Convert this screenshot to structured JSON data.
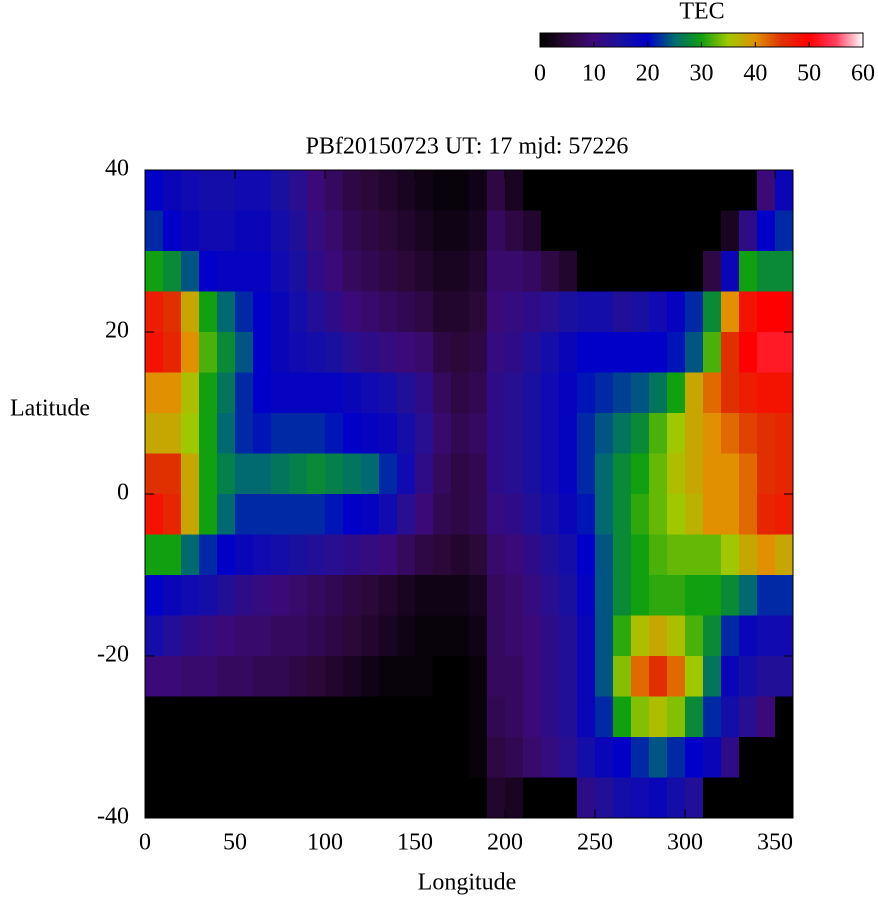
{
  "chart_data": {
    "type": "heatmap",
    "title": "PBf20150723  UT: 17  mjd: 57226",
    "xlabel": "Longitude",
    "ylabel": "Latitude",
    "colorbar_label": "TEC",
    "xlim": [
      0,
      360
    ],
    "ylim": [
      -40,
      40
    ],
    "xticks": [
      0,
      50,
      100,
      150,
      200,
      250,
      300,
      350
    ],
    "yticks": [
      -40,
      -20,
      0,
      20,
      40
    ],
    "clim": [
      0,
      60
    ],
    "cticks": [
      0,
      10,
      20,
      30,
      40,
      50,
      60
    ],
    "colormap": [
      [
        0,
        "#000000"
      ],
      [
        5,
        "#2a0838"
      ],
      [
        10,
        "#3c0a78"
      ],
      [
        15,
        "#1a10a0"
      ],
      [
        20,
        "#0000c8"
      ],
      [
        25,
        "#006a70"
      ],
      [
        30,
        "#10a010"
      ],
      [
        35,
        "#a0c800"
      ],
      [
        40,
        "#e09000"
      ],
      [
        45,
        "#e03000"
      ],
      [
        50,
        "#ff0000"
      ],
      [
        55,
        "#ff4060"
      ],
      [
        60,
        "#ffffff"
      ]
    ],
    "x": [
      5,
      15,
      25,
      35,
      45,
      55,
      65,
      75,
      85,
      95,
      105,
      115,
      125,
      135,
      145,
      155,
      165,
      175,
      185,
      195,
      205,
      215,
      225,
      235,
      245,
      255,
      265,
      275,
      285,
      295,
      305,
      315,
      325,
      335,
      345,
      355
    ],
    "y": [
      37.5,
      32.5,
      27.5,
      22.5,
      17.5,
      12.5,
      7.5,
      2.5,
      -2.5,
      -7.5,
      -12.5,
      -17.5,
      -22.5,
      -27.5,
      -32.5,
      -37.5
    ],
    "z": [
      [
        20,
        18,
        17,
        16,
        16,
        17,
        17,
        15,
        13,
        10,
        8,
        6,
        5,
        4,
        3,
        2,
        1,
        1,
        2,
        6,
        3,
        0,
        0,
        0,
        0,
        0,
        0,
        0,
        0,
        0,
        0,
        0,
        0,
        0,
        10,
        18
      ],
      [
        22,
        20,
        18,
        17,
        17,
        18,
        18,
        16,
        14,
        11,
        9,
        7,
        6,
        5,
        4,
        3,
        2,
        2,
        3,
        8,
        6,
        4,
        0,
        0,
        0,
        0,
        0,
        0,
        0,
        0,
        0,
        0,
        3,
        12,
        20,
        22
      ],
      [
        30,
        28,
        24,
        20,
        19,
        19,
        19,
        17,
        15,
        12,
        10,
        8,
        7,
        6,
        5,
        4,
        3,
        3,
        4,
        9,
        9,
        8,
        6,
        4,
        0,
        0,
        0,
        0,
        0,
        0,
        0,
        6,
        18,
        30,
        28,
        28
      ],
      [
        47,
        45,
        38,
        30,
        25,
        22,
        20,
        18,
        16,
        14,
        12,
        10,
        9,
        8,
        7,
        6,
        4,
        4,
        5,
        10,
        11,
        12,
        13,
        15,
        16,
        16,
        14,
        15,
        17,
        19,
        22,
        28,
        40,
        48,
        50,
        50
      ],
      [
        48,
        46,
        40,
        32,
        28,
        24,
        20,
        18,
        17,
        16,
        15,
        13,
        12,
        11,
        10,
        9,
        6,
        5,
        6,
        11,
        12,
        14,
        16,
        18,
        20,
        20,
        20,
        20,
        20,
        21,
        24,
        32,
        45,
        50,
        52,
        52
      ],
      [
        40,
        40,
        36,
        30,
        26,
        22,
        20,
        19,
        19,
        19,
        19,
        18,
        17,
        16,
        14,
        12,
        8,
        6,
        7,
        12,
        13,
        15,
        17,
        19,
        21,
        22,
        23,
        24,
        26,
        30,
        38,
        42,
        45,
        47,
        48,
        48
      ],
      [
        38,
        38,
        35,
        30,
        25,
        22,
        21,
        22,
        22,
        22,
        21,
        20,
        19,
        18,
        16,
        13,
        9,
        7,
        8,
        12,
        13,
        15,
        17,
        19,
        22,
        24,
        26,
        28,
        32,
        35,
        38,
        40,
        42,
        44,
        45,
        46
      ],
      [
        45,
        45,
        38,
        30,
        27,
        25,
        25,
        26,
        27,
        28,
        27,
        26,
        25,
        22,
        17,
        12,
        8,
        6,
        7,
        12,
        13,
        15,
        17,
        19,
        22,
        25,
        28,
        30,
        33,
        36,
        38,
        40,
        40,
        42,
        45,
        46
      ],
      [
        48,
        46,
        38,
        30,
        25,
        22,
        22,
        22,
        22,
        22,
        21,
        20,
        19,
        17,
        13,
        10,
        7,
        6,
        7,
        11,
        12,
        14,
        16,
        18,
        21,
        25,
        28,
        31,
        33,
        35,
        37,
        40,
        40,
        42,
        46,
        47
      ],
      [
        30,
        30,
        25,
        22,
        20,
        18,
        17,
        16,
        15,
        14,
        13,
        12,
        11,
        10,
        8,
        6,
        5,
        4,
        5,
        9,
        10,
        12,
        14,
        16,
        20,
        24,
        28,
        30,
        32,
        33,
        33,
        33,
        35,
        38,
        40,
        38
      ],
      [
        20,
        18,
        17,
        16,
        14,
        12,
        11,
        10,
        9,
        8,
        7,
        6,
        5,
        4,
        3,
        2,
        2,
        2,
        3,
        8,
        9,
        11,
        13,
        15,
        19,
        24,
        28,
        30,
        31,
        31,
        30,
        30,
        28,
        25,
        22,
        22
      ],
      [
        16,
        14,
        12,
        11,
        10,
        9,
        9,
        8,
        8,
        7,
        6,
        5,
        4,
        3,
        2,
        1,
        1,
        1,
        2,
        8,
        9,
        10,
        12,
        14,
        18,
        24,
        31,
        36,
        38,
        36,
        32,
        28,
        22,
        18,
        17,
        17
      ],
      [
        10,
        10,
        9,
        9,
        8,
        8,
        7,
        7,
        6,
        5,
        4,
        3,
        2,
        1,
        1,
        1,
        0,
        0,
        1,
        8,
        8,
        10,
        12,
        14,
        18,
        24,
        34,
        42,
        45,
        42,
        35,
        26,
        18,
        16,
        14,
        14
      ],
      [
        0,
        0,
        0,
        0,
        0,
        0,
        0,
        0,
        0,
        0,
        0,
        0,
        0,
        0,
        0,
        0,
        0,
        0,
        1,
        7,
        8,
        10,
        12,
        14,
        18,
        22,
        30,
        34,
        36,
        34,
        28,
        22,
        16,
        13,
        10,
        0
      ],
      [
        0,
        0,
        0,
        0,
        0,
        0,
        0,
        0,
        0,
        0,
        0,
        0,
        0,
        0,
        0,
        0,
        0,
        0,
        1,
        6,
        7,
        9,
        11,
        13,
        16,
        18,
        20,
        22,
        24,
        22,
        20,
        18,
        12,
        0,
        0,
        0
      ],
      [
        0,
        0,
        0,
        0,
        0,
        0,
        0,
        0,
        0,
        0,
        0,
        0,
        0,
        0,
        0,
        0,
        0,
        0,
        0,
        4,
        3,
        0,
        0,
        0,
        12,
        14,
        16,
        17,
        18,
        16,
        14,
        0,
        0,
        0,
        0,
        0
      ]
    ]
  }
}
